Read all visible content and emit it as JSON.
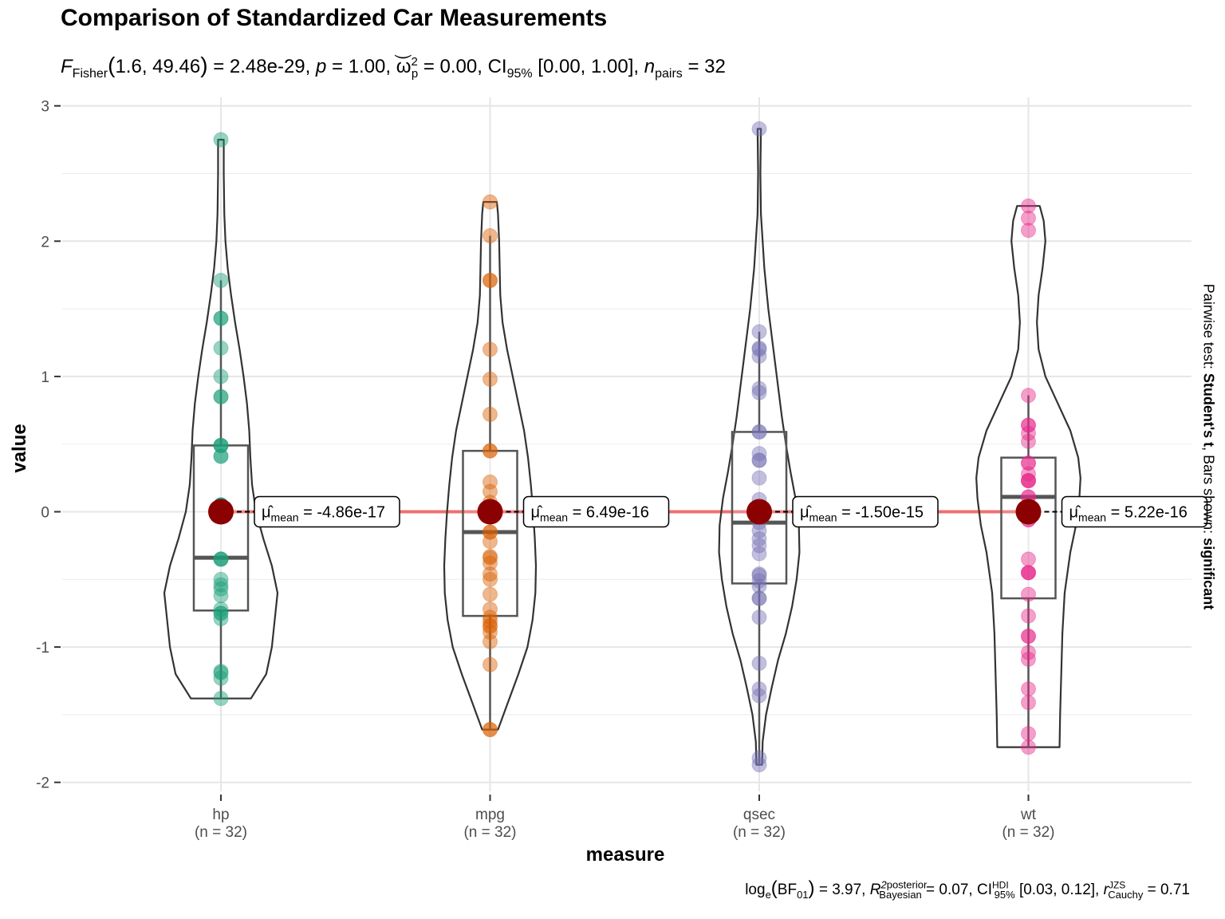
{
  "chart_data": {
    "type": "violin",
    "title": "Comparison of Standardized Car Measurements",
    "subtitle": "F_Fisher(1.6, 49.46) = 2.48e-29, p = 1.00, ω̂²_p = 0.00, CI95% [0.00, 1.00], n_pairs = 32",
    "caption": "log_e(BF01) = 3.97, R̂² posterior Bayesian = 0.07, CI HDI 95% [0.03, 0.12], r JZS Cauchy = 0.71",
    "pairwise_text": "Pairwise test: Student's t. Bars shown: significant",
    "xlabel": "measure",
    "ylabel": "value",
    "ylim": [
      -2,
      3
    ],
    "yticks": [
      -2,
      -1,
      0,
      1,
      2,
      3
    ],
    "grid": true,
    "categories": [
      "hp",
      "mpg",
      "qsec",
      "wt"
    ],
    "n_labels": [
      "(n = 32)",
      "(n = 32)",
      "(n = 32)",
      "(n = 32)"
    ],
    "means": [
      0,
      0,
      0,
      0
    ],
    "mean_labels": [
      "-4.86e-17",
      "6.49e-16",
      "-1.50e-15",
      "5.22e-16"
    ],
    "boxes": [
      {
        "min": -1.38,
        "q1": -0.73,
        "median": -0.34,
        "q3": 0.49,
        "max": 1.71
      },
      {
        "min": -1.61,
        "q1": -0.77,
        "median": -0.15,
        "q3": 0.45,
        "max": 2.04
      },
      {
        "min": -1.87,
        "q1": -0.53,
        "median": -0.08,
        "q3": 0.59,
        "max": 1.33
      },
      {
        "min": -1.74,
        "q1": -0.64,
        "median": 0.11,
        "q3": 0.4,
        "max": 0.86
      }
    ],
    "points": [
      [
        -1.38,
        -1.23,
        -1.19,
        -1.18,
        -0.79,
        -0.75,
        -0.72,
        -0.62,
        -0.57,
        -0.54,
        -0.5,
        -0.35,
        -0.35,
        -0.35,
        0.05,
        0.05,
        0.05,
        0.05,
        0.41,
        0.41,
        0.49,
        0.49,
        0.49,
        0.85,
        0.85,
        1.0,
        1.21,
        1.43,
        1.43,
        1.71,
        2.75,
        -0.75
      ],
      [
        -1.61,
        -1.61,
        -1.13,
        -0.96,
        -0.89,
        -0.85,
        -0.81,
        -0.78,
        -0.72,
        -0.61,
        -0.46,
        -0.38,
        -0.34,
        -0.22,
        -0.15,
        -0.15,
        -0.01,
        0.07,
        0.15,
        0.22,
        0.45,
        0.45,
        0.72,
        0.98,
        1.2,
        1.71,
        1.71,
        2.04,
        2.29,
        -0.33,
        -0.84,
        -0.5
      ],
      [
        -1.87,
        -1.82,
        -1.36,
        -1.31,
        -1.12,
        -0.78,
        -0.64,
        -0.55,
        -0.51,
        -0.46,
        -0.31,
        -0.25,
        -0.14,
        -0.08,
        0.0,
        0.09,
        0.25,
        0.38,
        0.43,
        0.59,
        0.88,
        0.91,
        1.15,
        1.2,
        1.33,
        2.83,
        -0.47,
        -0.2,
        -0.64,
        0.59,
        0.38,
        1.21
      ],
      [
        -1.74,
        -1.64,
        -1.41,
        -1.31,
        -1.09,
        -1.04,
        -0.92,
        -0.77,
        -0.61,
        -0.45,
        -0.45,
        -0.35,
        -0.06,
        0.11,
        0.23,
        0.23,
        0.28,
        0.36,
        0.52,
        0.58,
        0.64,
        0.64,
        0.86,
        2.08,
        2.17,
        2.26,
        0.23,
        -0.45,
        -0.06,
        0.11,
        0.36,
        -0.92
      ]
    ],
    "violin_widths": [
      [
        [
          -1.38,
          0.53
        ],
        [
          -1.2,
          0.8
        ],
        [
          -1.0,
          0.9
        ],
        [
          -0.8,
          0.95
        ],
        [
          -0.6,
          1.0
        ],
        [
          -0.4,
          0.9
        ],
        [
          -0.2,
          0.75
        ],
        [
          0.0,
          0.62
        ],
        [
          0.2,
          0.55
        ],
        [
          0.4,
          0.52
        ],
        [
          0.6,
          0.5
        ],
        [
          0.8,
          0.46
        ],
        [
          1.0,
          0.4
        ],
        [
          1.2,
          0.33
        ],
        [
          1.4,
          0.25
        ],
        [
          1.6,
          0.18
        ],
        [
          1.8,
          0.12
        ],
        [
          2.0,
          0.08
        ],
        [
          2.2,
          0.06
        ],
        [
          2.5,
          0.05
        ],
        [
          2.75,
          0.05
        ]
      ],
      [
        [
          -1.61,
          0.14
        ],
        [
          -1.45,
          0.28
        ],
        [
          -1.2,
          0.5
        ],
        [
          -1.0,
          0.66
        ],
        [
          -0.8,
          0.75
        ],
        [
          -0.6,
          0.8
        ],
        [
          -0.4,
          0.81
        ],
        [
          -0.2,
          0.79
        ],
        [
          0.0,
          0.76
        ],
        [
          0.2,
          0.72
        ],
        [
          0.4,
          0.67
        ],
        [
          0.6,
          0.6
        ],
        [
          0.8,
          0.5
        ],
        [
          1.0,
          0.4
        ],
        [
          1.2,
          0.3
        ],
        [
          1.4,
          0.22
        ],
        [
          1.6,
          0.18
        ],
        [
          1.8,
          0.17
        ],
        [
          2.0,
          0.16
        ],
        [
          2.2,
          0.14
        ],
        [
          2.29,
          0.12
        ]
      ],
      [
        [
          -1.87,
          0.05
        ],
        [
          -1.7,
          0.06
        ],
        [
          -1.5,
          0.12
        ],
        [
          -1.3,
          0.22
        ],
        [
          -1.1,
          0.33
        ],
        [
          -0.9,
          0.47
        ],
        [
          -0.7,
          0.58
        ],
        [
          -0.5,
          0.66
        ],
        [
          -0.3,
          0.71
        ],
        [
          -0.1,
          0.7
        ],
        [
          0.1,
          0.64
        ],
        [
          0.3,
          0.55
        ],
        [
          0.5,
          0.47
        ],
        [
          0.7,
          0.4
        ],
        [
          0.9,
          0.34
        ],
        [
          1.1,
          0.28
        ],
        [
          1.3,
          0.22
        ],
        [
          1.5,
          0.16
        ],
        [
          1.8,
          0.09
        ],
        [
          2.2,
          0.03
        ],
        [
          2.5,
          0.02
        ],
        [
          2.83,
          0.03
        ]
      ],
      [
        [
          -1.74,
          0.55
        ],
        [
          -1.5,
          0.56
        ],
        [
          -1.2,
          0.58
        ],
        [
          -0.9,
          0.6
        ],
        [
          -0.6,
          0.64
        ],
        [
          -0.3,
          0.74
        ],
        [
          -0.1,
          0.84
        ],
        [
          0.1,
          0.9
        ],
        [
          0.25,
          0.92
        ],
        [
          0.4,
          0.88
        ],
        [
          0.6,
          0.74
        ],
        [
          0.8,
          0.52
        ],
        [
          1.0,
          0.3
        ],
        [
          1.2,
          0.18
        ],
        [
          1.4,
          0.15
        ],
        [
          1.6,
          0.18
        ],
        [
          1.8,
          0.25
        ],
        [
          2.0,
          0.3
        ],
        [
          2.15,
          0.27
        ],
        [
          2.26,
          0.2
        ]
      ]
    ],
    "colors": [
      "#1B9E77",
      "#D95F02",
      "#7570B3",
      "#E7298A"
    ],
    "mean_color": "#8B0000",
    "mean_line_color": "#F07070"
  }
}
